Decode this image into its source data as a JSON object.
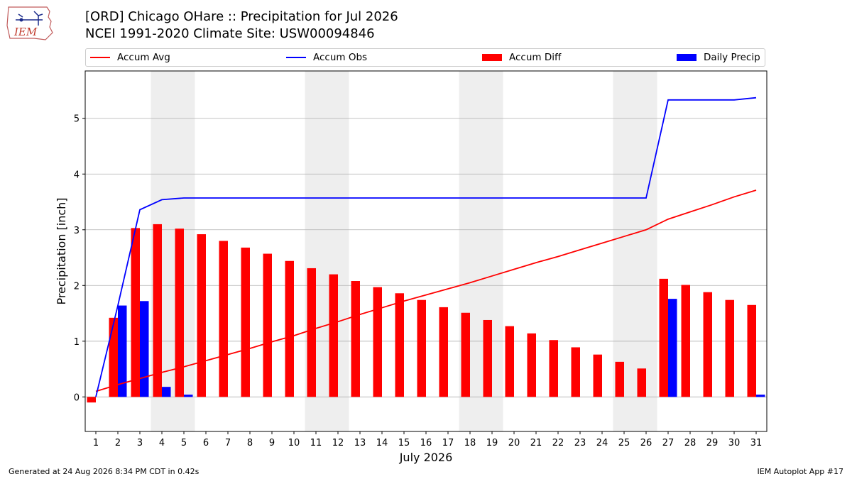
{
  "header": {
    "logo_text": "IEM",
    "title_line1": "[ORD] Chicago OHare :: Precipitation for Jul 2026",
    "title_line2": "NCEI 1991-2020 Climate Site: USW00094846"
  },
  "legend": {
    "items": [
      {
        "label": "Accum Avg",
        "color": "#ff0000",
        "kind": "line"
      },
      {
        "label": "Accum Obs",
        "color": "#0000ff",
        "kind": "line"
      },
      {
        "label": "Accum Diff",
        "color": "#ff0000",
        "kind": "bar"
      },
      {
        "label": "Daily Precip",
        "color": "#0000ff",
        "kind": "bar"
      }
    ]
  },
  "footer": {
    "generated": "Generated at 24 Aug 2026 8:34 PM CDT in 0.42s",
    "app": "IEM Autoplot App #17"
  },
  "chart_data": {
    "type": "bar",
    "xlabel": "July 2026",
    "ylabel": "Precipitation [inch]",
    "ylim": [
      -0.62,
      5.85
    ],
    "yticks": [
      0,
      1,
      2,
      3,
      4,
      5
    ],
    "grid": "horizontal",
    "legend_position": "top",
    "categories": [
      "1",
      "2",
      "3",
      "4",
      "5",
      "6",
      "7",
      "8",
      "9",
      "10",
      "11",
      "12",
      "13",
      "14",
      "15",
      "16",
      "17",
      "18",
      "19",
      "20",
      "21",
      "22",
      "23",
      "24",
      "25",
      "26",
      "27",
      "28",
      "29",
      "30",
      "31"
    ],
    "weekend_days": [
      4,
      5,
      11,
      12,
      18,
      19,
      25,
      26
    ],
    "series": [
      {
        "name": "Accum Diff",
        "kind": "bar",
        "color": "#ff0000",
        "values": [
          -0.1,
          1.42,
          3.03,
          3.1,
          3.02,
          2.92,
          2.8,
          2.68,
          2.57,
          2.44,
          2.31,
          2.2,
          2.08,
          1.97,
          1.86,
          1.74,
          1.61,
          1.51,
          1.38,
          1.27,
          1.14,
          1.02,
          0.89,
          0.76,
          0.63,
          0.51,
          2.12,
          2.01,
          1.88,
          1.74,
          1.65
        ]
      },
      {
        "name": "Daily Precip",
        "kind": "bar",
        "color": "#0000ff",
        "values": [
          0.0,
          1.64,
          1.72,
          0.18,
          0.04,
          0,
          0,
          0,
          0,
          0,
          0,
          0,
          0,
          0,
          0,
          0,
          0,
          0,
          0,
          0,
          0,
          0,
          0,
          0,
          0,
          0,
          1.76,
          0,
          0,
          0,
          0.04
        ]
      },
      {
        "name": "Accum Avg",
        "kind": "line",
        "color": "#ff0000",
        "values": [
          0.1,
          0.22,
          0.33,
          0.44,
          0.54,
          0.65,
          0.76,
          0.87,
          0.99,
          1.1,
          1.23,
          1.35,
          1.48,
          1.6,
          1.72,
          1.83,
          1.94,
          2.05,
          2.17,
          2.29,
          2.41,
          2.52,
          2.64,
          2.76,
          2.88,
          3.0,
          3.19,
          3.32,
          3.45,
          3.59,
          3.71
        ]
      },
      {
        "name": "Accum Obs",
        "kind": "line",
        "color": "#0000ff",
        "values": [
          0.0,
          1.64,
          3.36,
          3.54,
          3.57,
          3.57,
          3.57,
          3.57,
          3.57,
          3.57,
          3.57,
          3.57,
          3.57,
          3.57,
          3.57,
          3.57,
          3.57,
          3.57,
          3.57,
          3.57,
          3.57,
          3.57,
          3.57,
          3.57,
          3.57,
          3.57,
          5.33,
          5.33,
          5.33,
          5.33,
          5.37
        ]
      }
    ]
  }
}
